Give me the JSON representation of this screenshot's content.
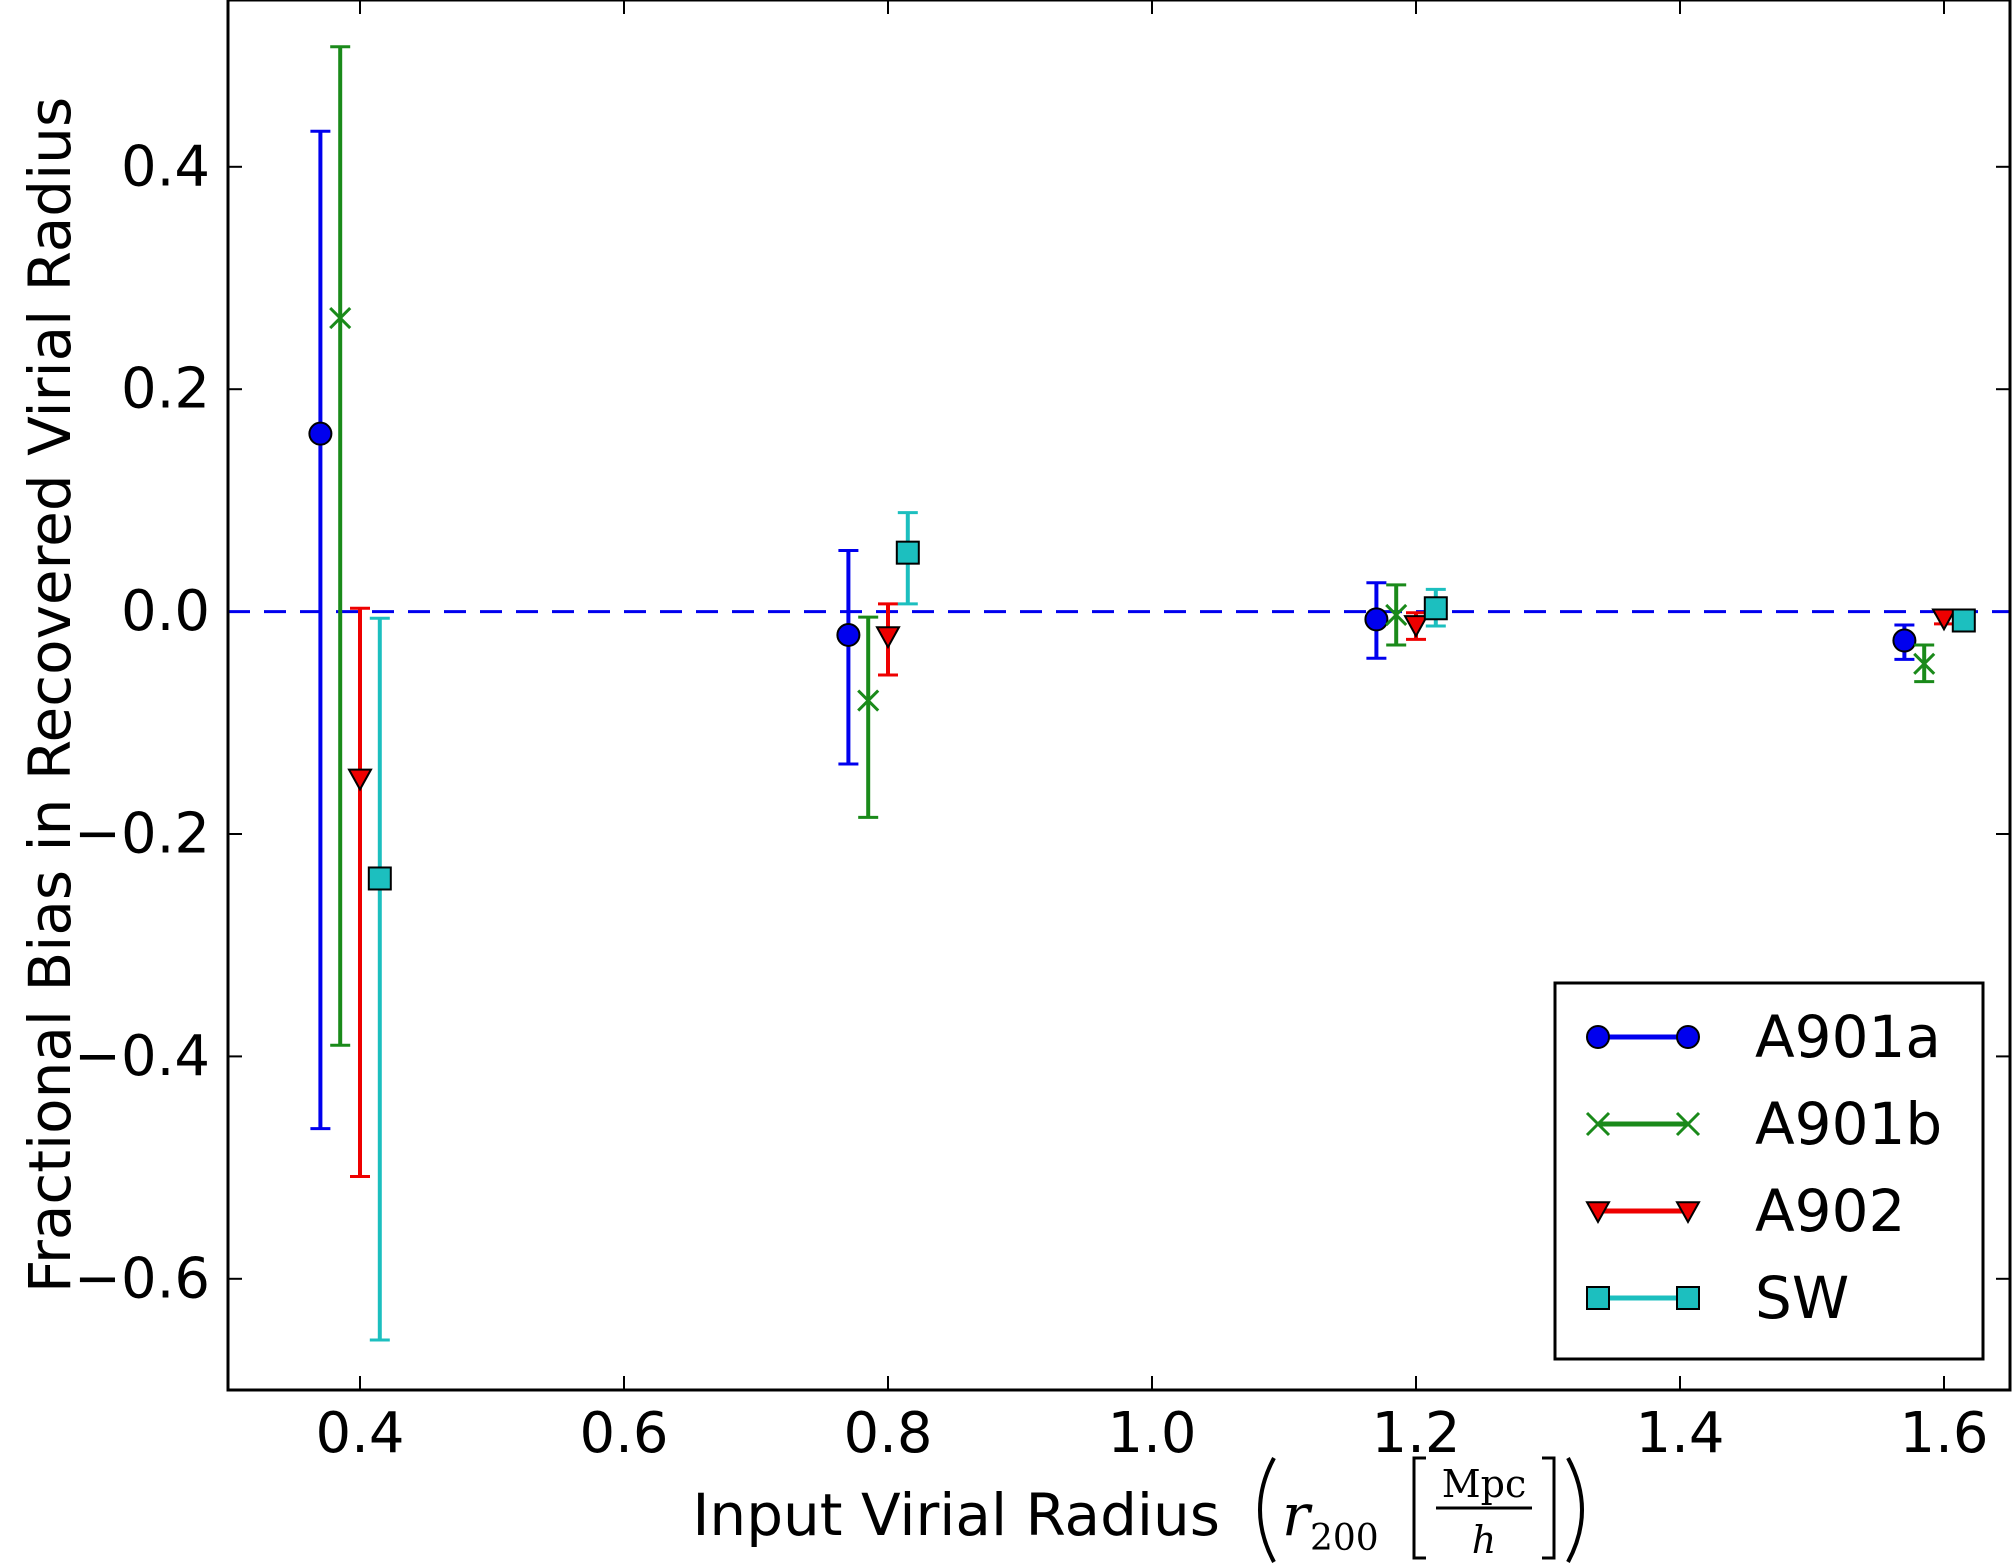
{
  "chart_data": {
    "type": "scatter",
    "xlabel": "Input Virial Radius",
    "xlabel_math": {
      "symbol": "r",
      "subscript": "200",
      "unit_numerator": "Mpc",
      "unit_denominator": "h"
    },
    "ylabel": "Fractional Bias in Recovered Virial Radius",
    "xlim": [
      0.3,
      1.65
    ],
    "ylim": [
      -0.7,
      0.55
    ],
    "xticks": [
      0.4,
      0.6,
      0.8,
      1.0,
      1.2,
      1.4,
      1.6
    ],
    "xtick_labels": [
      "0.4",
      "0.6",
      "0.8",
      "1.0",
      "1.2",
      "1.4",
      "1.6"
    ],
    "yticks": [
      -0.6,
      -0.4,
      -0.2,
      0.0,
      0.2,
      0.4
    ],
    "ytick_labels": [
      "−0.6",
      "−0.4",
      "−0.2",
      "0.0",
      "0.2",
      "0.4"
    ],
    "reference_line": {
      "y": 0.0,
      "style": "dashed",
      "color": "#0000ee"
    },
    "legend_position": "lower-right",
    "grid": false,
    "series": [
      {
        "name": "A901a",
        "marker": "circle",
        "color": "#0000ee",
        "markerfill": "#0000ee",
        "points": [
          {
            "x": 0.37,
            "y": 0.16,
            "ylo": -0.465,
            "yhi": 0.432
          },
          {
            "x": 0.77,
            "y": -0.021,
            "ylo": -0.137,
            "yhi": 0.055
          },
          {
            "x": 1.17,
            "y": -0.007,
            "ylo": -0.042,
            "yhi": 0.026
          },
          {
            "x": 1.57,
            "y": -0.026,
            "ylo": -0.043,
            "yhi": -0.012
          }
        ]
      },
      {
        "name": "A901b",
        "marker": "x",
        "color": "#1a8a1a",
        "markerfill": "none",
        "points": [
          {
            "x": 0.385,
            "y": 0.264,
            "ylo": -0.39,
            "yhi": 0.508
          },
          {
            "x": 0.785,
            "y": -0.08,
            "ylo": -0.185,
            "yhi": -0.005
          },
          {
            "x": 1.185,
            "y": -0.003,
            "ylo": -0.03,
            "yhi": 0.024
          },
          {
            "x": 1.585,
            "y": -0.047,
            "ylo": -0.063,
            "yhi": -0.03
          }
        ]
      },
      {
        "name": "A902",
        "marker": "triangle-down",
        "color": "#ee0000",
        "markerfill": "#ee0000",
        "points": [
          {
            "x": 0.4,
            "y": -0.15,
            "ylo": -0.508,
            "yhi": 0.003
          },
          {
            "x": 0.8,
            "y": -0.022,
            "ylo": -0.057,
            "yhi": 0.007
          },
          {
            "x": 1.2,
            "y": -0.012,
            "ylo": -0.025,
            "yhi": -0.001
          },
          {
            "x": 1.6,
            "y": -0.006,
            "ylo": -0.011,
            "yhi": -0.001
          }
        ]
      },
      {
        "name": "SW",
        "marker": "square",
        "color": "#1cbfbf",
        "markerfill": "#1cbfbf",
        "points": [
          {
            "x": 0.415,
            "y": -0.24,
            "ylo": -0.655,
            "yhi": -0.006
          },
          {
            "x": 0.815,
            "y": 0.053,
            "ylo": 0.007,
            "yhi": 0.089
          },
          {
            "x": 1.215,
            "y": 0.003,
            "ylo": -0.013,
            "yhi": 0.02
          },
          {
            "x": 1.615,
            "y": -0.008,
            "ylo": -0.011,
            "yhi": -0.005
          }
        ]
      }
    ]
  }
}
